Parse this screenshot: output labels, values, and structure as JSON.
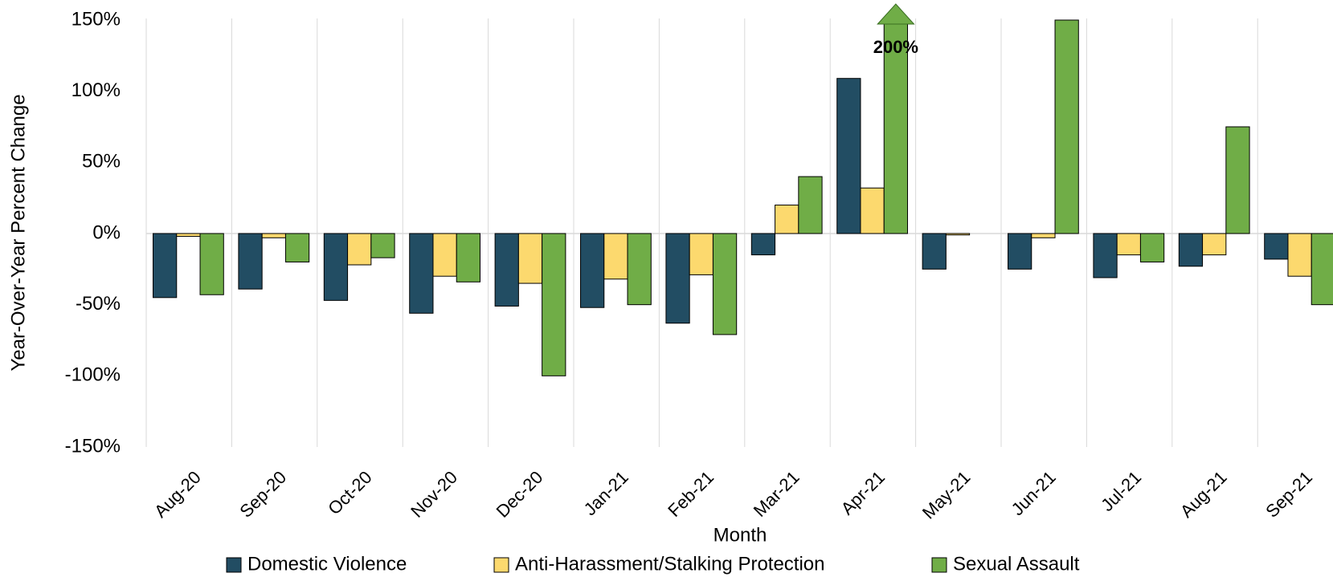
{
  "chart_data": {
    "type": "bar",
    "x_label": "Month",
    "y_label": "Year-Over-Year Percent Change",
    "categories": [
      "Aug-20",
      "Sep-20",
      "Oct-20",
      "Nov-20",
      "Dec-20",
      "Jan-21",
      "Feb-21",
      "Mar-21",
      "Apr-21",
      "May-21",
      "Jun-21",
      "Jul-21",
      "Aug-21",
      "Sep-21"
    ],
    "series": [
      {
        "name": "Domestic Violence",
        "color": "#224d63",
        "values": [
          -45,
          -39,
          -47,
          -56,
          -51,
          -52,
          -63,
          -15,
          109,
          -25,
          -25,
          -31,
          -23,
          -18
        ]
      },
      {
        "name": "Anti-Harassment/Stalking Protection",
        "color": "#fcd96e",
        "values": [
          -2,
          -3,
          -22,
          -30,
          -35,
          -32,
          -29,
          20,
          32,
          -1,
          -3,
          -15,
          -15,
          -30
        ]
      },
      {
        "name": "Sexual Assault",
        "color": "#70ad47",
        "values": [
          -43,
          -20,
          -17,
          -34,
          -100,
          -50,
          -71,
          40,
          200,
          null,
          150,
          -20,
          75,
          -50
        ],
        "value_labels": [
          null,
          null,
          null,
          null,
          null,
          null,
          null,
          null,
          "200%",
          null,
          null,
          null,
          null,
          null
        ]
      }
    ],
    "ylim": [
      -150,
      150
    ],
    "yticks": [
      {
        "value": -150,
        "label": "-150%"
      },
      {
        "value": -100,
        "label": "-100%"
      },
      {
        "value": -50,
        "label": "-50%"
      },
      {
        "value": 0,
        "label": "0%"
      },
      {
        "value": 50,
        "label": "50%"
      },
      {
        "value": 100,
        "label": "100%"
      },
      {
        "value": 150,
        "label": "150%"
      }
    ],
    "legend": "bottom"
  }
}
